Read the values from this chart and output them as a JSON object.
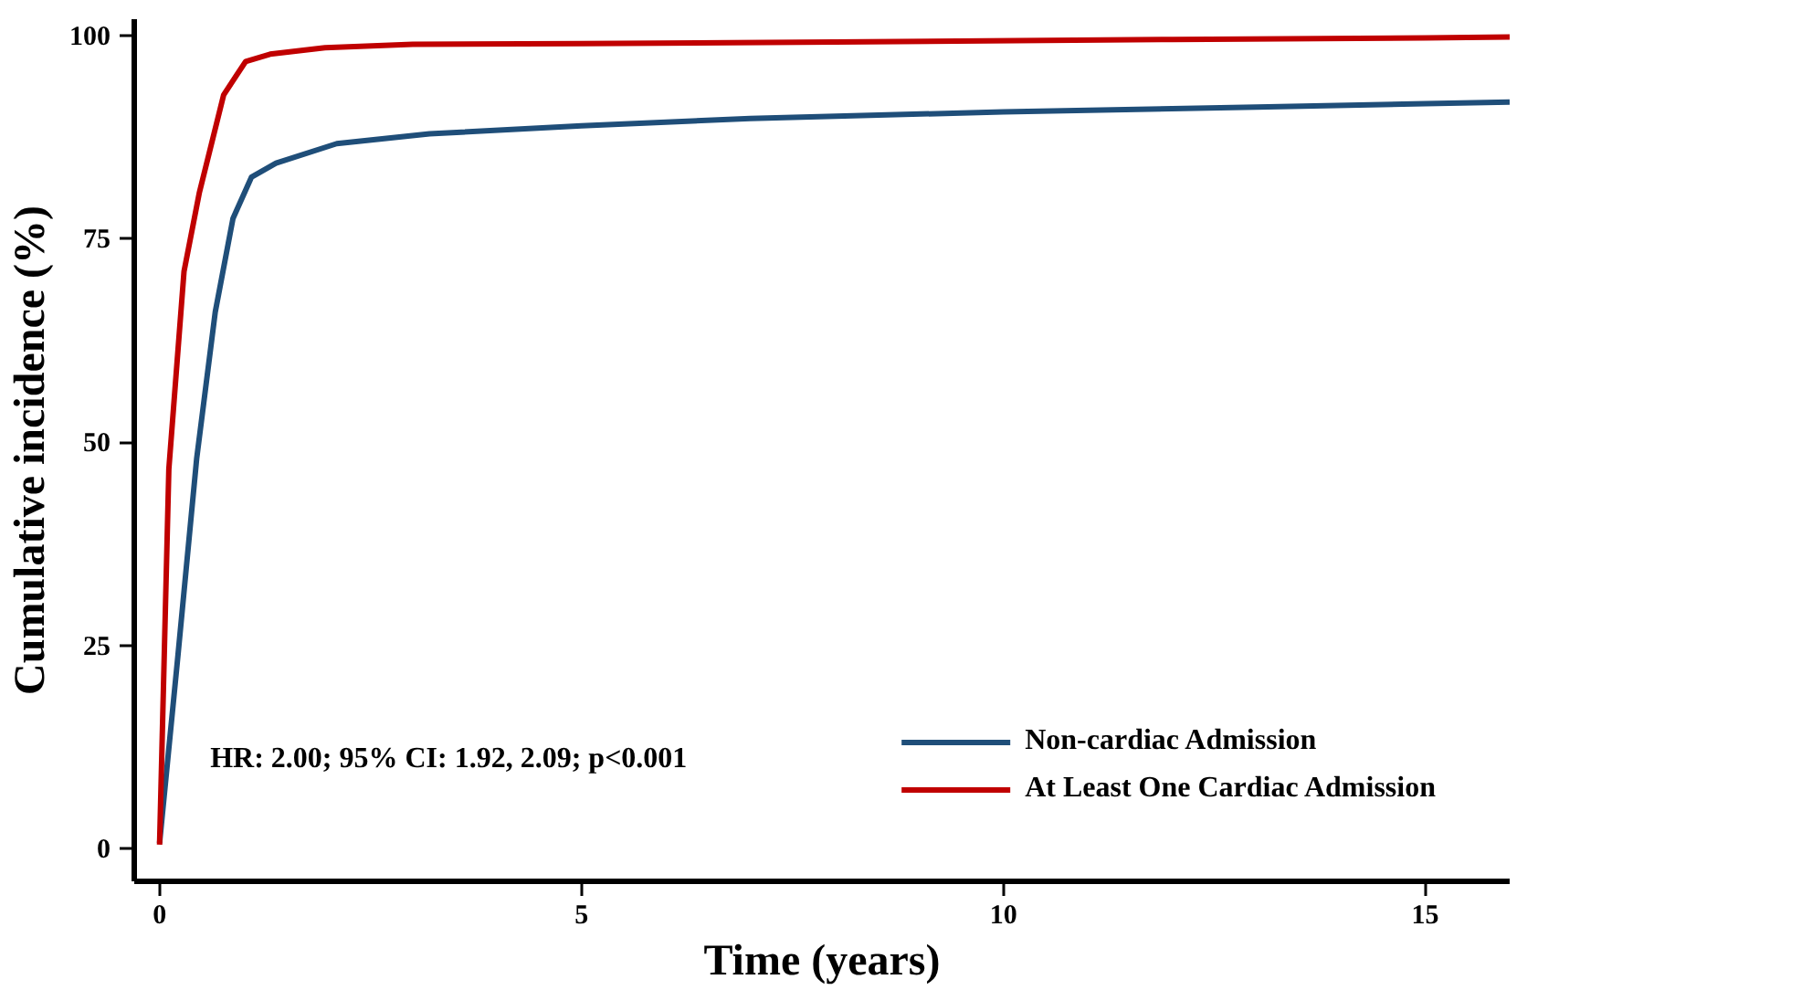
{
  "chart_data": {
    "type": "line",
    "xlabel": "Time (years)",
    "ylabel": "Cumulative incidence (%)",
    "xlim": [
      -0.3,
      16
    ],
    "ylim": [
      -4,
      102
    ],
    "xticks": [
      0,
      5,
      10,
      15
    ],
    "yticks": [
      0,
      25,
      50,
      75,
      100
    ],
    "grid": false,
    "legend": "bottom right",
    "marker": "none",
    "line_style": "solid",
    "annotations": [
      "HR: 2.00; 95% CI: 1.92, 2.09; p<0.001"
    ],
    "series": [
      {
        "name": "Non-cardiac Admission",
        "color": "#1f4e79",
        "x": [
          0,
          0.22,
          0.44,
          0.66,
          0.87,
          1.09,
          1.38,
          2.1,
          3.2,
          5,
          7,
          10,
          13,
          15,
          16
        ],
        "values": [
          0.7,
          24,
          48,
          66,
          77.5,
          82.6,
          84.3,
          86.7,
          87.9,
          88.9,
          89.8,
          90.6,
          91.2,
          91.6,
          91.8
        ]
      },
      {
        "name": "At Least One Cardiac Admission",
        "color": "#c00000",
        "x": [
          0,
          0.11,
          0.29,
          0.47,
          0.76,
          1.02,
          1.31,
          1.96,
          3,
          5,
          8,
          12,
          15,
          16
        ],
        "values": [
          0.5,
          46.7,
          71,
          80.6,
          92.7,
          96.8,
          97.7,
          98.5,
          98.9,
          99,
          99.2,
          99.5,
          99.7,
          99.8
        ]
      }
    ]
  }
}
